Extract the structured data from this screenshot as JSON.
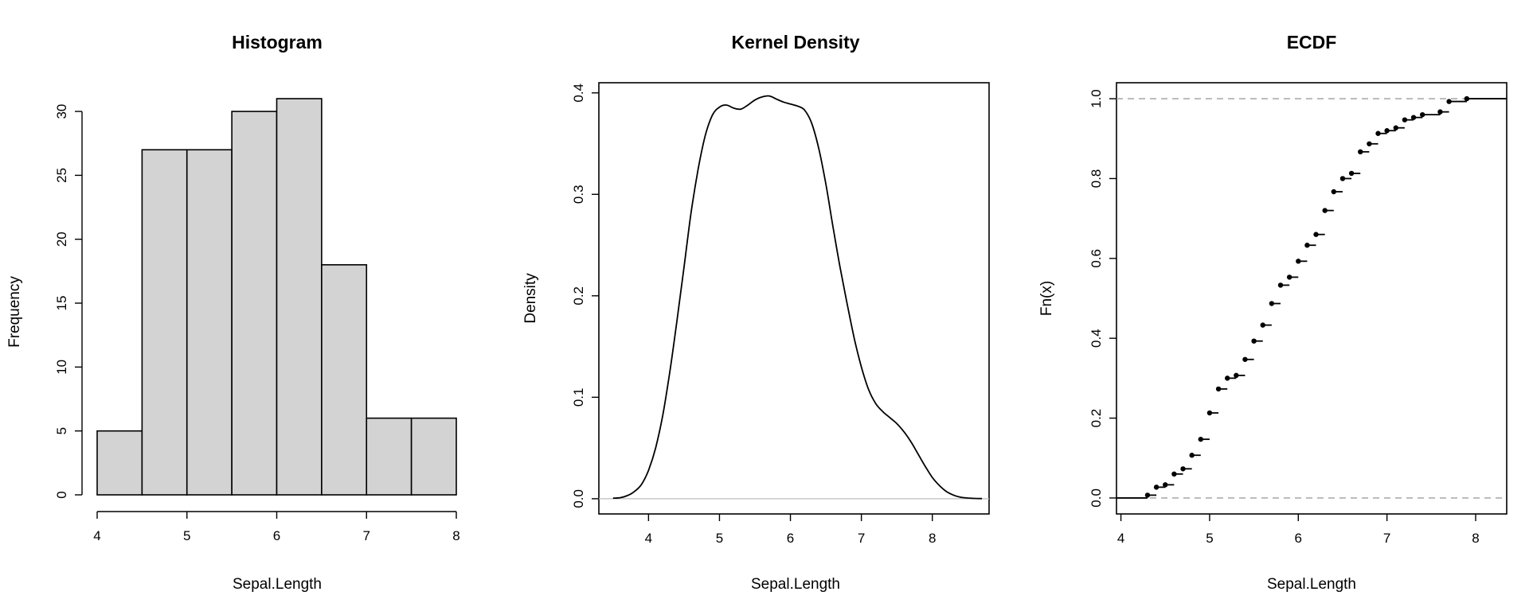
{
  "chart_data": [
    {
      "type": "bar",
      "title": "Histogram",
      "xlabel": "Sepal.Length",
      "ylabel": "Frequency",
      "xlim": [
        4,
        8
      ],
      "ylim": [
        0,
        31
      ],
      "xticks": [
        "4",
        "5",
        "6",
        "7",
        "8"
      ],
      "yticks": [
        "0",
        "5",
        "10",
        "15",
        "20",
        "25",
        "30"
      ],
      "bins": [
        [
          4.0,
          4.5
        ],
        [
          4.5,
          5.0
        ],
        [
          5.0,
          5.5
        ],
        [
          5.5,
          6.0
        ],
        [
          6.0,
          6.5
        ],
        [
          6.5,
          7.0
        ],
        [
          7.0,
          7.5
        ],
        [
          7.5,
          8.0
        ]
      ],
      "values": [
        5,
        27,
        27,
        30,
        31,
        18,
        6,
        6
      ]
    },
    {
      "type": "line",
      "title": "Kernel Density",
      "xlabel": "Sepal.Length",
      "ylabel": "Density",
      "xlim": [
        3.3,
        8.8
      ],
      "ylim": [
        -0.015,
        0.41
      ],
      "xticks": [
        "4",
        "5",
        "6",
        "7",
        "8"
      ],
      "yticks": [
        "0.0",
        "0.1",
        "0.2",
        "0.3",
        "0.4"
      ],
      "x": [
        3.5,
        3.6,
        3.7,
        3.8,
        3.9,
        4.0,
        4.1,
        4.2,
        4.3,
        4.4,
        4.5,
        4.6,
        4.7,
        4.8,
        4.9,
        5.0,
        5.1,
        5.2,
        5.3,
        5.4,
        5.5,
        5.6,
        5.7,
        5.8,
        5.9,
        6.0,
        6.1,
        6.2,
        6.3,
        6.4,
        6.5,
        6.6,
        6.7,
        6.8,
        6.9,
        7.0,
        7.1,
        7.2,
        7.3,
        7.4,
        7.5,
        7.6,
        7.7,
        7.8,
        7.9,
        8.0,
        8.1,
        8.2,
        8.3,
        8.4,
        8.5,
        8.6,
        8.7
      ],
      "y": [
        0.0005,
        0.001,
        0.003,
        0.007,
        0.014,
        0.028,
        0.05,
        0.082,
        0.125,
        0.175,
        0.228,
        0.282,
        0.325,
        0.358,
        0.378,
        0.386,
        0.388,
        0.385,
        0.384,
        0.388,
        0.393,
        0.396,
        0.397,
        0.394,
        0.391,
        0.389,
        0.387,
        0.383,
        0.37,
        0.345,
        0.31,
        0.268,
        0.228,
        0.192,
        0.158,
        0.13,
        0.108,
        0.094,
        0.086,
        0.08,
        0.074,
        0.066,
        0.056,
        0.044,
        0.032,
        0.021,
        0.013,
        0.007,
        0.0035,
        0.0015,
        0.0007,
        0.0003,
        0.0001
      ]
    },
    {
      "type": "scatter",
      "title": "ECDF",
      "xlabel": "Sepal.Length",
      "ylabel": "Fn(x)",
      "xlim": [
        3.95,
        8.35
      ],
      "ylim": [
        -0.04,
        1.04
      ],
      "xticks": [
        "4",
        "5",
        "6",
        "7",
        "8"
      ],
      "yticks": [
        "0.0",
        "0.2",
        "0.4",
        "0.6",
        "0.8",
        "1.0"
      ],
      "x": [
        4.3,
        4.4,
        4.5,
        4.6,
        4.7,
        4.8,
        4.9,
        5.0,
        5.1,
        5.2,
        5.3,
        5.4,
        5.5,
        5.6,
        5.7,
        5.8,
        5.9,
        6.0,
        6.1,
        6.2,
        6.3,
        6.4,
        6.5,
        6.6,
        6.7,
        6.8,
        6.9,
        7.0,
        7.1,
        7.2,
        7.3,
        7.4,
        7.6,
        7.7,
        7.9
      ],
      "y": [
        0.007,
        0.027,
        0.033,
        0.06,
        0.073,
        0.107,
        0.147,
        0.213,
        0.273,
        0.3,
        0.307,
        0.347,
        0.393,
        0.433,
        0.487,
        0.533,
        0.553,
        0.593,
        0.633,
        0.66,
        0.72,
        0.767,
        0.8,
        0.813,
        0.867,
        0.887,
        0.913,
        0.92,
        0.927,
        0.947,
        0.953,
        0.96,
        0.967,
        0.993,
        1.0
      ],
      "reference_lines": [
        0,
        1
      ]
    }
  ]
}
